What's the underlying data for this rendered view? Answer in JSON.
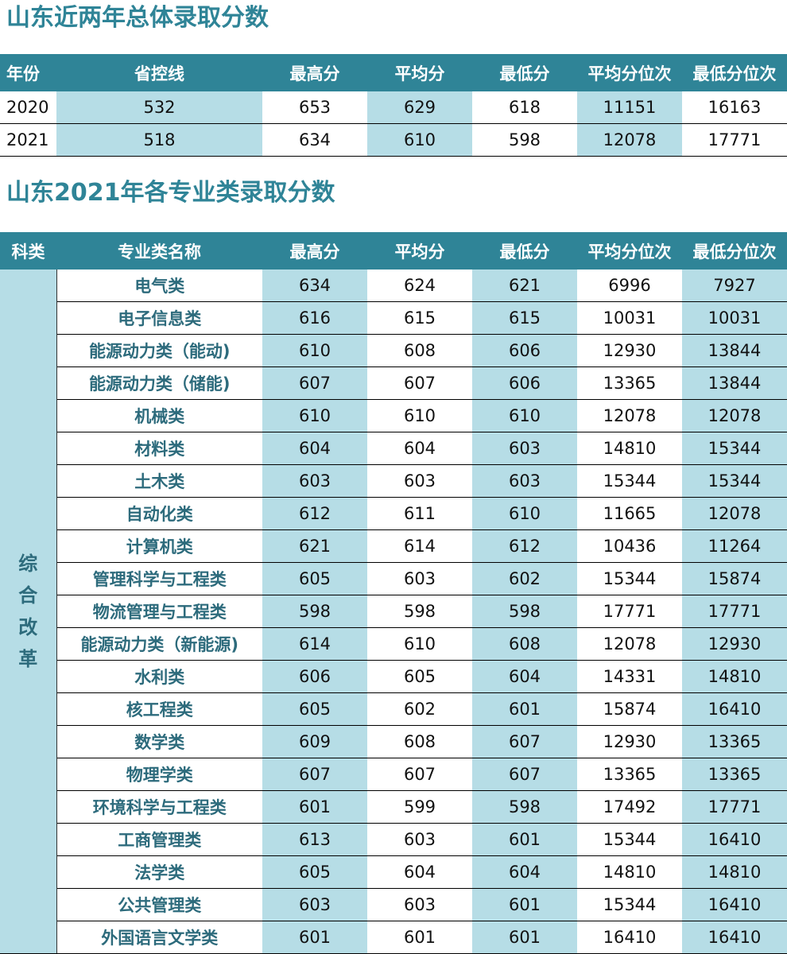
{
  "section1": {
    "title": "山东近两年总体录取分数",
    "headers": [
      "年份",
      "省控线",
      "最高分",
      "平均分",
      "最低分",
      "平均分位次",
      "最低分位次"
    ],
    "rows": [
      [
        "2020",
        "532",
        "653",
        "629",
        "618",
        "11151",
        "16163"
      ],
      [
        "2021",
        "518",
        "634",
        "610",
        "598",
        "12078",
        "17771"
      ]
    ]
  },
  "section2": {
    "title": "山东2021年各专业类录取分数",
    "headers": [
      "科类",
      "专业类名称",
      "最高分",
      "平均分",
      "最低分",
      "平均分位次",
      "最低分位次"
    ],
    "category": "综合改革",
    "rows": [
      [
        "电气类",
        "634",
        "624",
        "621",
        "6996",
        "7927"
      ],
      [
        "电子信息类",
        "616",
        "615",
        "615",
        "10031",
        "10031"
      ],
      [
        "能源动力类（能动)",
        "610",
        "608",
        "606",
        "12930",
        "13844"
      ],
      [
        "能源动力类（储能)",
        "607",
        "607",
        "606",
        "13365",
        "13844"
      ],
      [
        "机械类",
        "610",
        "610",
        "610",
        "12078",
        "12078"
      ],
      [
        "材料类",
        "604",
        "604",
        "603",
        "14810",
        "15344"
      ],
      [
        "土木类",
        "603",
        "603",
        "603",
        "15344",
        "15344"
      ],
      [
        "自动化类",
        "612",
        "611",
        "610",
        "11665",
        "12078"
      ],
      [
        "计算机类",
        "621",
        "614",
        "612",
        "10436",
        "11264"
      ],
      [
        "管理科学与工程类",
        "605",
        "603",
        "602",
        "15344",
        "15874"
      ],
      [
        "物流管理与工程类",
        "598",
        "598",
        "598",
        "17771",
        "17771"
      ],
      [
        "能源动力类（新能源)",
        "614",
        "610",
        "608",
        "12078",
        "12930"
      ],
      [
        "水利类",
        "606",
        "605",
        "604",
        "14331",
        "14810"
      ],
      [
        "核工程类",
        "605",
        "602",
        "601",
        "15874",
        "16410"
      ],
      [
        "数学类",
        "609",
        "608",
        "607",
        "12930",
        "13365"
      ],
      [
        "物理学类",
        "607",
        "607",
        "607",
        "13365",
        "13365"
      ],
      [
        "环境科学与工程类",
        "601",
        "599",
        "598",
        "17492",
        "17771"
      ],
      [
        "工商管理类",
        "613",
        "603",
        "601",
        "15344",
        "16410"
      ],
      [
        "法学类",
        "605",
        "604",
        "604",
        "14810",
        "14810"
      ],
      [
        "公共管理类",
        "603",
        "603",
        "601",
        "15344",
        "16410"
      ],
      [
        "外国语言文学类",
        "601",
        "601",
        "601",
        "16410",
        "16410"
      ]
    ]
  },
  "colors": {
    "header_bg": "#2f8497",
    "title_color": "#2f8497",
    "light_blue": "#b6dde6",
    "major_text": "#2d6b7c"
  }
}
